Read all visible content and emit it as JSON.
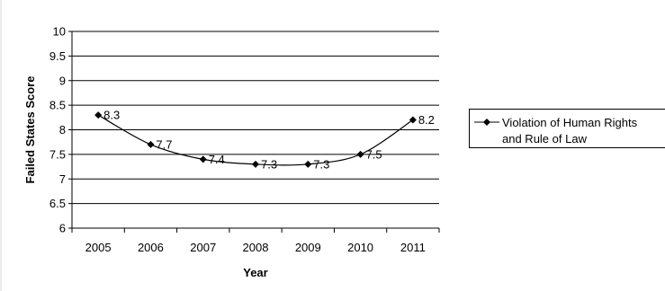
{
  "chart_data": {
    "type": "line",
    "title": "",
    "xlabel": "Year",
    "ylabel": "Failed States Score",
    "categories": [
      "2005",
      "2006",
      "2007",
      "2008",
      "2009",
      "2010",
      "2011"
    ],
    "ylim": [
      6,
      10
    ],
    "yticks": [
      "6",
      "6.5",
      "7",
      "7.5",
      "8",
      "8.5",
      "9",
      "9.5",
      "10"
    ],
    "grid": true,
    "legend_position": "right",
    "series": [
      {
        "name": "Violation of Human Rights and Rule of Law",
        "values": [
          8.3,
          7.7,
          7.4,
          7.3,
          7.3,
          7.5,
          8.2
        ],
        "data_labels": [
          "8.3",
          "7.7",
          "7.4",
          "7.3",
          "7.3",
          "7.5",
          "8.2"
        ],
        "color": "#000000",
        "marker": "diamond"
      }
    ],
    "legend": {
      "lines": [
        "Violation of Human Rights",
        "and Rule of Law"
      ]
    }
  }
}
